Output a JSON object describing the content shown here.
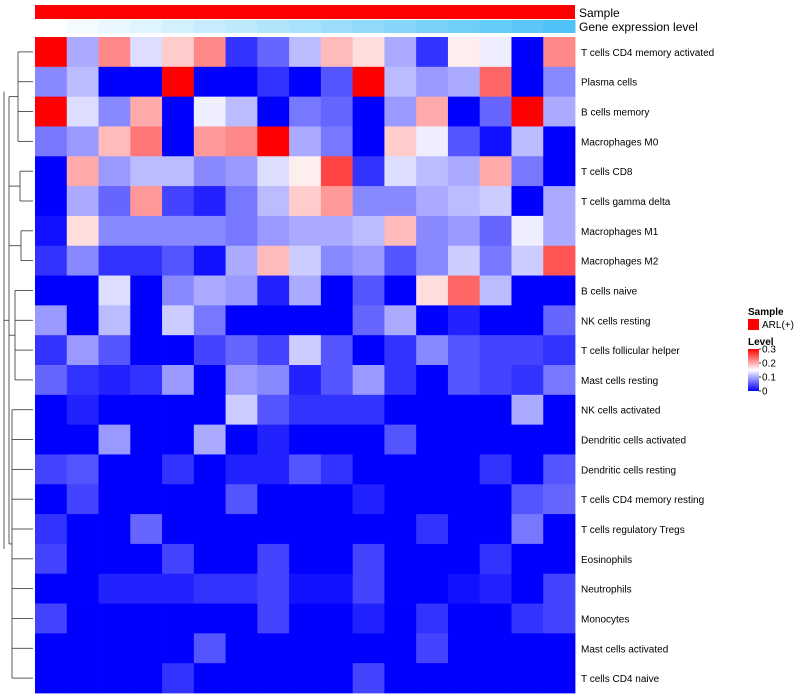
{
  "chart_data": {
    "type": "heatmap",
    "title": "",
    "annotations": [
      {
        "name": "Sample",
        "values_description": "all columns ARL(+)"
      },
      {
        "name": "Gene expression level",
        "gradient": "white to light blue across columns"
      }
    ],
    "legend": {
      "sample_title": "Sample",
      "sample_entries": [
        {
          "label": "ARL(+)",
          "color": "#ff0000"
        }
      ],
      "level_title": "Level",
      "level_ticks": [
        "0.3",
        "0.2",
        "0.1",
        "0"
      ],
      "level_tick_values": [
        0.3,
        0.2,
        0.1,
        0
      ],
      "placement": "right"
    },
    "color_scale": {
      "min": 0,
      "mid": 0.15,
      "max": 0.3,
      "low": "#0000ff",
      "midColor": "#ffffff",
      "high": "#ff0000"
    },
    "rows": [
      "T cells CD4 memory activated",
      "Plasma cells",
      "B cells memory",
      "Macrophages M0",
      "T cells CD8",
      "T cells gamma delta",
      "Macrophages M1",
      "Macrophages M2",
      "B cells naive",
      "NK cells resting",
      "T cells follicular helper",
      "Mast cells resting",
      "NK cells activated",
      "Dendritic cells activated",
      "Dendritic cells resting",
      "T cells CD4 memory resting",
      "T cells regulatory  Tregs",
      "Eosinophils",
      "Neutrophils",
      "Monocytes",
      "Mast cells activated",
      "T cells CD4 naive"
    ],
    "columns": 17,
    "values": [
      [
        0.3,
        0.1,
        0.22,
        0.13,
        0.18,
        0.22,
        0.03,
        0.06,
        0.11,
        0.19,
        0.17,
        0.1,
        0.03,
        0.16,
        0.14,
        0.0,
        0.22
      ],
      [
        0.08,
        0.11,
        0.0,
        0.0,
        0.3,
        0.0,
        0.0,
        0.03,
        0.0,
        0.05,
        0.3,
        0.11,
        0.09,
        0.1,
        0.24,
        0.0,
        0.08
      ],
      [
        0.3,
        0.13,
        0.08,
        0.2,
        0.0,
        0.14,
        0.11,
        0.0,
        0.07,
        0.06,
        0.0,
        0.09,
        0.2,
        0.0,
        0.06,
        0.3,
        0.1
      ],
      [
        0.07,
        0.09,
        0.19,
        0.23,
        0.0,
        0.21,
        0.22,
        0.3,
        0.1,
        0.07,
        0.0,
        0.18,
        0.14,
        0.05,
        0.01,
        0.11,
        0.0
      ],
      [
        0.0,
        0.2,
        0.09,
        0.11,
        0.11,
        0.08,
        0.09,
        0.13,
        0.16,
        0.26,
        0.03,
        0.13,
        0.11,
        0.1,
        0.2,
        0.07,
        0.0
      ],
      [
        0.0,
        0.1,
        0.06,
        0.21,
        0.04,
        0.02,
        0.07,
        0.11,
        0.18,
        0.21,
        0.08,
        0.08,
        0.1,
        0.11,
        0.12,
        0.0,
        0.1
      ],
      [
        0.01,
        0.17,
        0.08,
        0.08,
        0.08,
        0.08,
        0.07,
        0.09,
        0.1,
        0.1,
        0.11,
        0.19,
        0.08,
        0.09,
        0.06,
        0.14,
        0.1
      ],
      [
        0.03,
        0.08,
        0.03,
        0.03,
        0.05,
        0.01,
        0.1,
        0.19,
        0.12,
        0.08,
        0.09,
        0.05,
        0.08,
        0.12,
        0.07,
        0.12,
        0.25
      ],
      [
        0.0,
        0.0,
        0.13,
        0.0,
        0.08,
        0.1,
        0.09,
        0.02,
        0.1,
        0.0,
        0.05,
        0.0,
        0.17,
        0.24,
        0.11,
        0.0,
        0.0
      ],
      [
        0.09,
        0.0,
        0.11,
        0.0,
        0.12,
        0.07,
        0.0,
        0.0,
        0.0,
        0.0,
        0.06,
        0.1,
        0.0,
        0.02,
        0.0,
        0.0,
        0.06
      ],
      [
        0.03,
        0.09,
        0.05,
        0.0,
        0.0,
        0.04,
        0.06,
        0.04,
        0.12,
        0.05,
        0.0,
        0.03,
        0.08,
        0.05,
        0.04,
        0.04,
        0.03
      ],
      [
        0.06,
        0.03,
        0.02,
        0.03,
        0.09,
        0.0,
        0.09,
        0.08,
        0.02,
        0.05,
        0.09,
        0.03,
        0.0,
        0.05,
        0.04,
        0.03,
        0.07
      ],
      [
        0.0,
        0.02,
        0.0,
        0.0,
        0.0,
        0.0,
        0.12,
        0.05,
        0.03,
        0.03,
        0.03,
        0.0,
        0.0,
        0.0,
        0.0,
        0.1,
        0.0
      ],
      [
        0.0,
        0.0,
        0.09,
        0.0,
        0.0,
        0.1,
        0.0,
        0.02,
        0.0,
        0.0,
        0.0,
        0.05,
        0.0,
        0.0,
        0.0,
        0.0,
        0.0
      ],
      [
        0.04,
        0.05,
        0.0,
        0.0,
        0.03,
        0.0,
        0.02,
        0.02,
        0.05,
        0.03,
        0.0,
        0.0,
        0.0,
        0.0,
        0.03,
        0.0,
        0.05
      ],
      [
        0.0,
        0.04,
        0.0,
        0.0,
        0.0,
        0.0,
        0.05,
        0.0,
        0.0,
        0.0,
        0.02,
        0.0,
        0.0,
        0.0,
        0.0,
        0.05,
        0.06
      ],
      [
        0.03,
        0.0,
        0.0,
        0.06,
        0.0,
        0.0,
        0.0,
        0.0,
        0.0,
        0.0,
        0.0,
        0.0,
        0.03,
        0.0,
        0.0,
        0.07,
        0.0
      ],
      [
        0.04,
        0.0,
        0.0,
        0.0,
        0.04,
        0.0,
        0.0,
        0.04,
        0.0,
        0.0,
        0.04,
        0.0,
        0.0,
        0.0,
        0.03,
        0.0,
        0.0
      ],
      [
        0.0,
        0.0,
        0.02,
        0.02,
        0.02,
        0.03,
        0.03,
        0.04,
        0.01,
        0.01,
        0.04,
        0.0,
        0.0,
        0.01,
        0.02,
        0.0,
        0.04
      ],
      [
        0.04,
        0.0,
        0.0,
        0.0,
        0.0,
        0.0,
        0.0,
        0.04,
        0.0,
        0.0,
        0.02,
        0.0,
        0.03,
        0.0,
        0.0,
        0.03,
        0.04
      ],
      [
        0.0,
        0.0,
        0.0,
        0.0,
        0.0,
        0.05,
        0.0,
        0.0,
        0.0,
        0.0,
        0.0,
        0.0,
        0.04,
        0.0,
        0.0,
        0.0,
        0.0
      ],
      [
        0.0,
        0.0,
        0.0,
        0.0,
        0.03,
        0.0,
        0.0,
        0.0,
        0.0,
        0.0,
        0.04,
        0.0,
        0.0,
        0.0,
        0.0,
        0.0,
        0.0
      ]
    ]
  }
}
